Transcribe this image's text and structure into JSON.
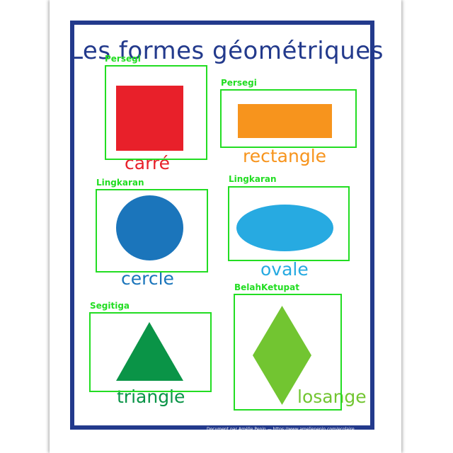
{
  "poster": {
    "title": "Les formes géométriques",
    "footer": "Document par Amélie Pepin — https://www.ameliepepin.com/ecolaire",
    "shapes": [
      {
        "word": "carré",
        "color": "#e8202a",
        "icon": "square-icon"
      },
      {
        "word": "rectangle",
        "color": "#f7941d",
        "icon": "rectangle-icon"
      },
      {
        "word": "cercle",
        "color": "#1b75bb",
        "icon": "circle-icon"
      },
      {
        "word": "ovale",
        "color": "#27aae1",
        "icon": "oval-icon"
      },
      {
        "word": "triangle",
        "color": "#0a9447",
        "icon": "triangle-icon"
      },
      {
        "word": "losange",
        "color": "#72c531",
        "icon": "diamond-icon"
      }
    ]
  },
  "annotations": [
    {
      "label": "Persegi"
    },
    {
      "label": "Persegi"
    },
    {
      "label": "Lingkaran"
    },
    {
      "label": "Lingkaran"
    },
    {
      "label": "Segitiga"
    },
    {
      "label": "BelahKetupat"
    }
  ],
  "colors": {
    "frame": "#233a8c",
    "bbox": "#22dd22"
  }
}
